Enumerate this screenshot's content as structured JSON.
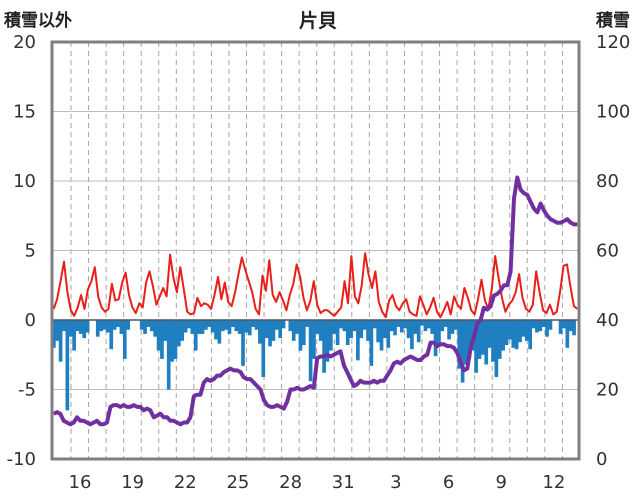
{
  "chart_data": {
    "type": "line",
    "title": "片貝",
    "ylabel_left": "積雪以外",
    "ylabel_right": "積雪",
    "ylim_left": [
      -10,
      20
    ],
    "ylim_right": [
      0,
      120
    ],
    "yticks_left": [
      20,
      15,
      10,
      5,
      0,
      -5,
      -10
    ],
    "yticks_right": [
      120,
      100,
      80,
      60,
      40,
      20,
      0
    ],
    "xticks": [
      "16",
      "19",
      "22",
      "25",
      "28",
      "31",
      "3",
      "6",
      "9",
      "12"
    ],
    "grid": "vertical dashed",
    "colors": {
      "temperature": "#e8201a",
      "precipitation": "#1f7fc0",
      "snow_depth": "#7030a0"
    },
    "series": [
      {
        "kind": "line",
        "axis": "left",
        "color": "#e8201a",
        "values": [
          0.8,
          1.5,
          2.8,
          4.2,
          2.0,
          0.7,
          0.3,
          0.9,
          1.8,
          0.8,
          2.2,
          2.8,
          3.8,
          1.7,
          0.9,
          0.6,
          0.8,
          2.6,
          1.4,
          1.5,
          2.7,
          3.4,
          1.8,
          0.9,
          0.5,
          1.2,
          0.9,
          2.7,
          3.5,
          2.4,
          1.1,
          1.7,
          2.3,
          1.7,
          4.7,
          3.0,
          2.0,
          3.8,
          2.2,
          0.6,
          0.4,
          0.5,
          1.6,
          1.0,
          1.2,
          1.1,
          0.8,
          1.8,
          3.1,
          1.5,
          2.7,
          1.3,
          1.0,
          2.0,
          3.3,
          4.5,
          3.6,
          2.8,
          2.0,
          0.8,
          0.4,
          3.2,
          2.1,
          4.3,
          1.8,
          1.3,
          2.0,
          1.4,
          0.7,
          1.8,
          2.6,
          4.0,
          3.1,
          1.6,
          0.7,
          1.4,
          2.8,
          1.1,
          0.5,
          0.7,
          0.7,
          0.5,
          0.3,
          0.6,
          0.9,
          2.8,
          1.2,
          4.6,
          1.7,
          1.2,
          2.5,
          4.8,
          3.3,
          2.3,
          3.5,
          1.3,
          0.6,
          0.2,
          1.4,
          1.8,
          1.0,
          0.7,
          1.2,
          1.5,
          0.6,
          0.4,
          0.3,
          1.7,
          1.1,
          0.4,
          0.9,
          1.6,
          0.6,
          0.2,
          0.7,
          1.3,
          0.4,
          1.7,
          1.1,
          0.8,
          2.3,
          1.6,
          0.7,
          0.4,
          1.5,
          2.9,
          1.4,
          0.8,
          2.2,
          4.6,
          3.0,
          1.6,
          0.6,
          1.1,
          1.4,
          2.0,
          3.3,
          1.6,
          0.8,
          0.6,
          1.1,
          3.5,
          2.0,
          0.7,
          0.5,
          1.1,
          0.4,
          0.6,
          2.1,
          3.9,
          4.0,
          2.4,
          1.0,
          0.8
        ]
      },
      {
        "kind": "bar",
        "axis": "left",
        "color": "#1f7fc0",
        "values": [
          -2.0,
          -1.5,
          -3.0,
          -0.8,
          -6.5,
          -1.2,
          -2.2,
          -0.8,
          -1.0,
          -1.3,
          -0.9,
          0,
          0,
          -1.2,
          -0.8,
          -0.7,
          -0.9,
          -2.1,
          -0.7,
          -0.5,
          -1.0,
          -2.8,
          -0.7,
          0,
          0,
          0,
          -0.7,
          -1.0,
          -0.5,
          -0.8,
          -1.2,
          -2.2,
          -2.8,
          -1.5,
          -5.0,
          -3.0,
          -2.8,
          -1.9,
          -1.5,
          -0.9,
          -0.6,
          -1.0,
          -2.2,
          -1.0,
          -1.0,
          -0.7,
          -0.5,
          -0.9,
          -1.4,
          -1.7,
          -0.8,
          -0.7,
          -1.0,
          -0.5,
          -0.8,
          -1.0,
          -3.3,
          -0.9,
          -1.1,
          -0.5,
          -0.7,
          -1.7,
          -4.1,
          -1.3,
          -1.9,
          -1.5,
          -0.7,
          -1.3,
          -0.6,
          0,
          -0.8,
          -1.5,
          -1.0,
          -2.2,
          -1.8,
          -0.5,
          -4.4,
          -2.8,
          -1.0,
          -1.5,
          -3.8,
          -3.0,
          -2.2,
          -1.0,
          -1.8,
          -0.6,
          -0.8,
          -1.8,
          -1.3,
          -0.8,
          -2.9,
          -1.3,
          -0.7,
          -1.5,
          -3.3,
          -0.6,
          -1.6,
          -2.2,
          -1.3,
          -2.0,
          -0.8,
          -1.1,
          -0.5,
          -0.9,
          -0.6,
          -1.3,
          -2.1,
          -1.0,
          -1.6,
          -0.4,
          -0.8,
          -0.6,
          -1.0,
          -2.6,
          -1.8,
          -0.8,
          -0.5,
          -1.4,
          -1.0,
          -0.7,
          -3.5,
          -4.5,
          -3.2,
          -2.8,
          -2.2,
          -3.8,
          -2.8,
          -2.5,
          -3.2,
          -2.0,
          -3.0,
          -4.1,
          -2.8,
          -2.2,
          -1.8,
          -1.4,
          -2.0,
          -2.1,
          -1.6,
          -1.2,
          -1.5,
          -2.1,
          -0.6,
          -0.9,
          -0.8,
          -0.5,
          -1.2,
          -0.7,
          0,
          0,
          -1.0,
          -0.6,
          -2.0,
          -0.8,
          -1.1,
          0
        ]
      },
      {
        "kind": "line",
        "axis": "right",
        "color": "#7030a0",
        "values": [
          13.0,
          13.5,
          13.0,
          11.0,
          10.5,
          10.0,
          10.5,
          12.0,
          11.0,
          11.0,
          10.5,
          10.0,
          10.5,
          11.0,
          10.0,
          10.0,
          10.5,
          15.0,
          15.5,
          15.5,
          15.0,
          15.5,
          15.0,
          15.0,
          15.5,
          15.0,
          15.0,
          14.0,
          14.5,
          14.0,
          12.0,
          12.5,
          13.0,
          12.0,
          12.0,
          11.0,
          11.0,
          10.5,
          10.0,
          10.5,
          10.5,
          12.0,
          18.0,
          18.5,
          18.5,
          22.0,
          23.0,
          22.5,
          23.0,
          24.0,
          24.0,
          25.0,
          25.5,
          26.0,
          25.5,
          25.5,
          25.0,
          23.5,
          23.0,
          23.0,
          22.0,
          21.0,
          20.0,
          17.0,
          15.5,
          15.0,
          15.0,
          15.5,
          15.0,
          14.5,
          16.5,
          20.0,
          20.0,
          20.5,
          20.0,
          20.0,
          20.5,
          21.0,
          20.5,
          29.0,
          29.5,
          29.5,
          30.0,
          29.5,
          30.0,
          30.5,
          31.0,
          27.0,
          25.0,
          23.0,
          21.0,
          21.5,
          22.5,
          22.0,
          22.0,
          22.0,
          22.5,
          22.0,
          22.5,
          22.5,
          24.0,
          25.5,
          27.5,
          28.0,
          27.5,
          28.5,
          29.0,
          29.5,
          29.0,
          28.5,
          28.5,
          29.5,
          30.0,
          33.5,
          33.5,
          32.5,
          33.0,
          33.0,
          32.5,
          32.5,
          32.0,
          30.5,
          28.0,
          25.5,
          26.0,
          32.0,
          35.0,
          39.0,
          40.0,
          43.5,
          43.0,
          44.0,
          47.0,
          47.5,
          48.5,
          50.0,
          50.0,
          54.0,
          75.0,
          81.0,
          77.5,
          76.5,
          76.0,
          74.0,
          72.0,
          71.0,
          73.5,
          71.5,
          70.0,
          69.0,
          68.5,
          68.0,
          68.0,
          68.5,
          69.0,
          68.0,
          67.5,
          67.5
        ]
      }
    ]
  }
}
